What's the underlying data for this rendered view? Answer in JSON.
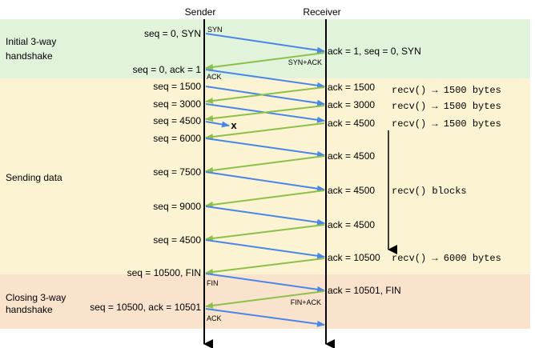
{
  "columns": {
    "sender": "Sender",
    "receiver": "Receiver"
  },
  "phases": [
    {
      "label_lines": [
        "Initial 3-way",
        "handshake"
      ],
      "color": "#e2f3dc"
    },
    {
      "label_lines": [
        "Sending data"
      ],
      "color": "#fbf3d2"
    },
    {
      "label_lines": [
        "Closing 3-way",
        "handshake"
      ],
      "color": "#fae3cd"
    }
  ],
  "colors": {
    "data_arrow": "#4a86e8",
    "ack_arrow": "#8cc04a",
    "lifeline": "#000000",
    "loss_mark": "#e0452b"
  },
  "sender_labels": [
    "seq = 0, SYN",
    "seq = 0, ack = 1",
    "seq = 1500",
    "seq = 3000",
    "seq = 4500",
    "seq = 6000",
    "seq = 7500",
    "seq = 9000",
    "seq = 4500",
    "seq = 10500, FIN",
    "seq = 10500, ack = 10501"
  ],
  "receiver_labels": [
    "ack = 1, seq = 0, SYN",
    "ack = 1500",
    "ack = 3000",
    "ack = 4500",
    "ack = 4500",
    "ack = 4500",
    "ack = 4500",
    "ack = 10500",
    "ack = 10501, FIN"
  ],
  "arrow_labels": [
    "SYN",
    "SYN+ACK",
    "ACK",
    "FIN",
    "FIN+ACK",
    "ACK"
  ],
  "recv_notes": [
    "recv() → 1500 bytes",
    "recv() → 1500 bytes",
    "recv() → 1500 bytes",
    "recv() blocks",
    "recv() → 6000 bytes"
  ],
  "loss_symbol": "x"
}
